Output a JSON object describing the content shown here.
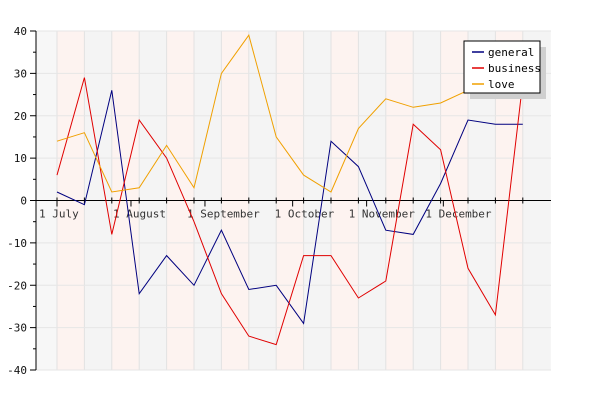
{
  "chart_data": {
    "type": "line",
    "title": "",
    "xlabel": "",
    "ylabel": "",
    "ylim": [
      -40,
      40
    ],
    "y_ticks": [
      -40,
      -30,
      -20,
      -10,
      0,
      10,
      20,
      30,
      40
    ],
    "x_tick_labels": [
      "1 July",
      "1 August",
      "1 September",
      "1 October",
      "1 November",
      "1 December"
    ],
    "x_tick_positions": [
      0,
      2.7,
      5.4,
      8.6,
      11.3,
      14.1
    ],
    "x_count": 18,
    "grid": true,
    "legend_position": "top-right",
    "series": [
      {
        "name": "general",
        "color": "#00007f",
        "values": [
          2,
          -1,
          26,
          -22,
          -13,
          -20,
          -7,
          -21,
          -20,
          -29,
          14,
          8,
          -7,
          -8,
          4,
          19,
          18,
          18
        ]
      },
      {
        "name": "business",
        "color": "#e00000",
        "values": [
          6,
          29,
          -8,
          19,
          10,
          -5,
          -22,
          -32,
          -34,
          -13,
          -13,
          -23,
          -19,
          18,
          12,
          -16,
          -27,
          28
        ]
      },
      {
        "name": "love",
        "color": "#f0a000",
        "values": [
          14,
          16,
          2,
          3,
          13,
          3,
          30,
          39,
          15,
          6,
          2,
          17,
          24,
          22,
          23,
          26,
          30,
          33
        ]
      }
    ]
  }
}
